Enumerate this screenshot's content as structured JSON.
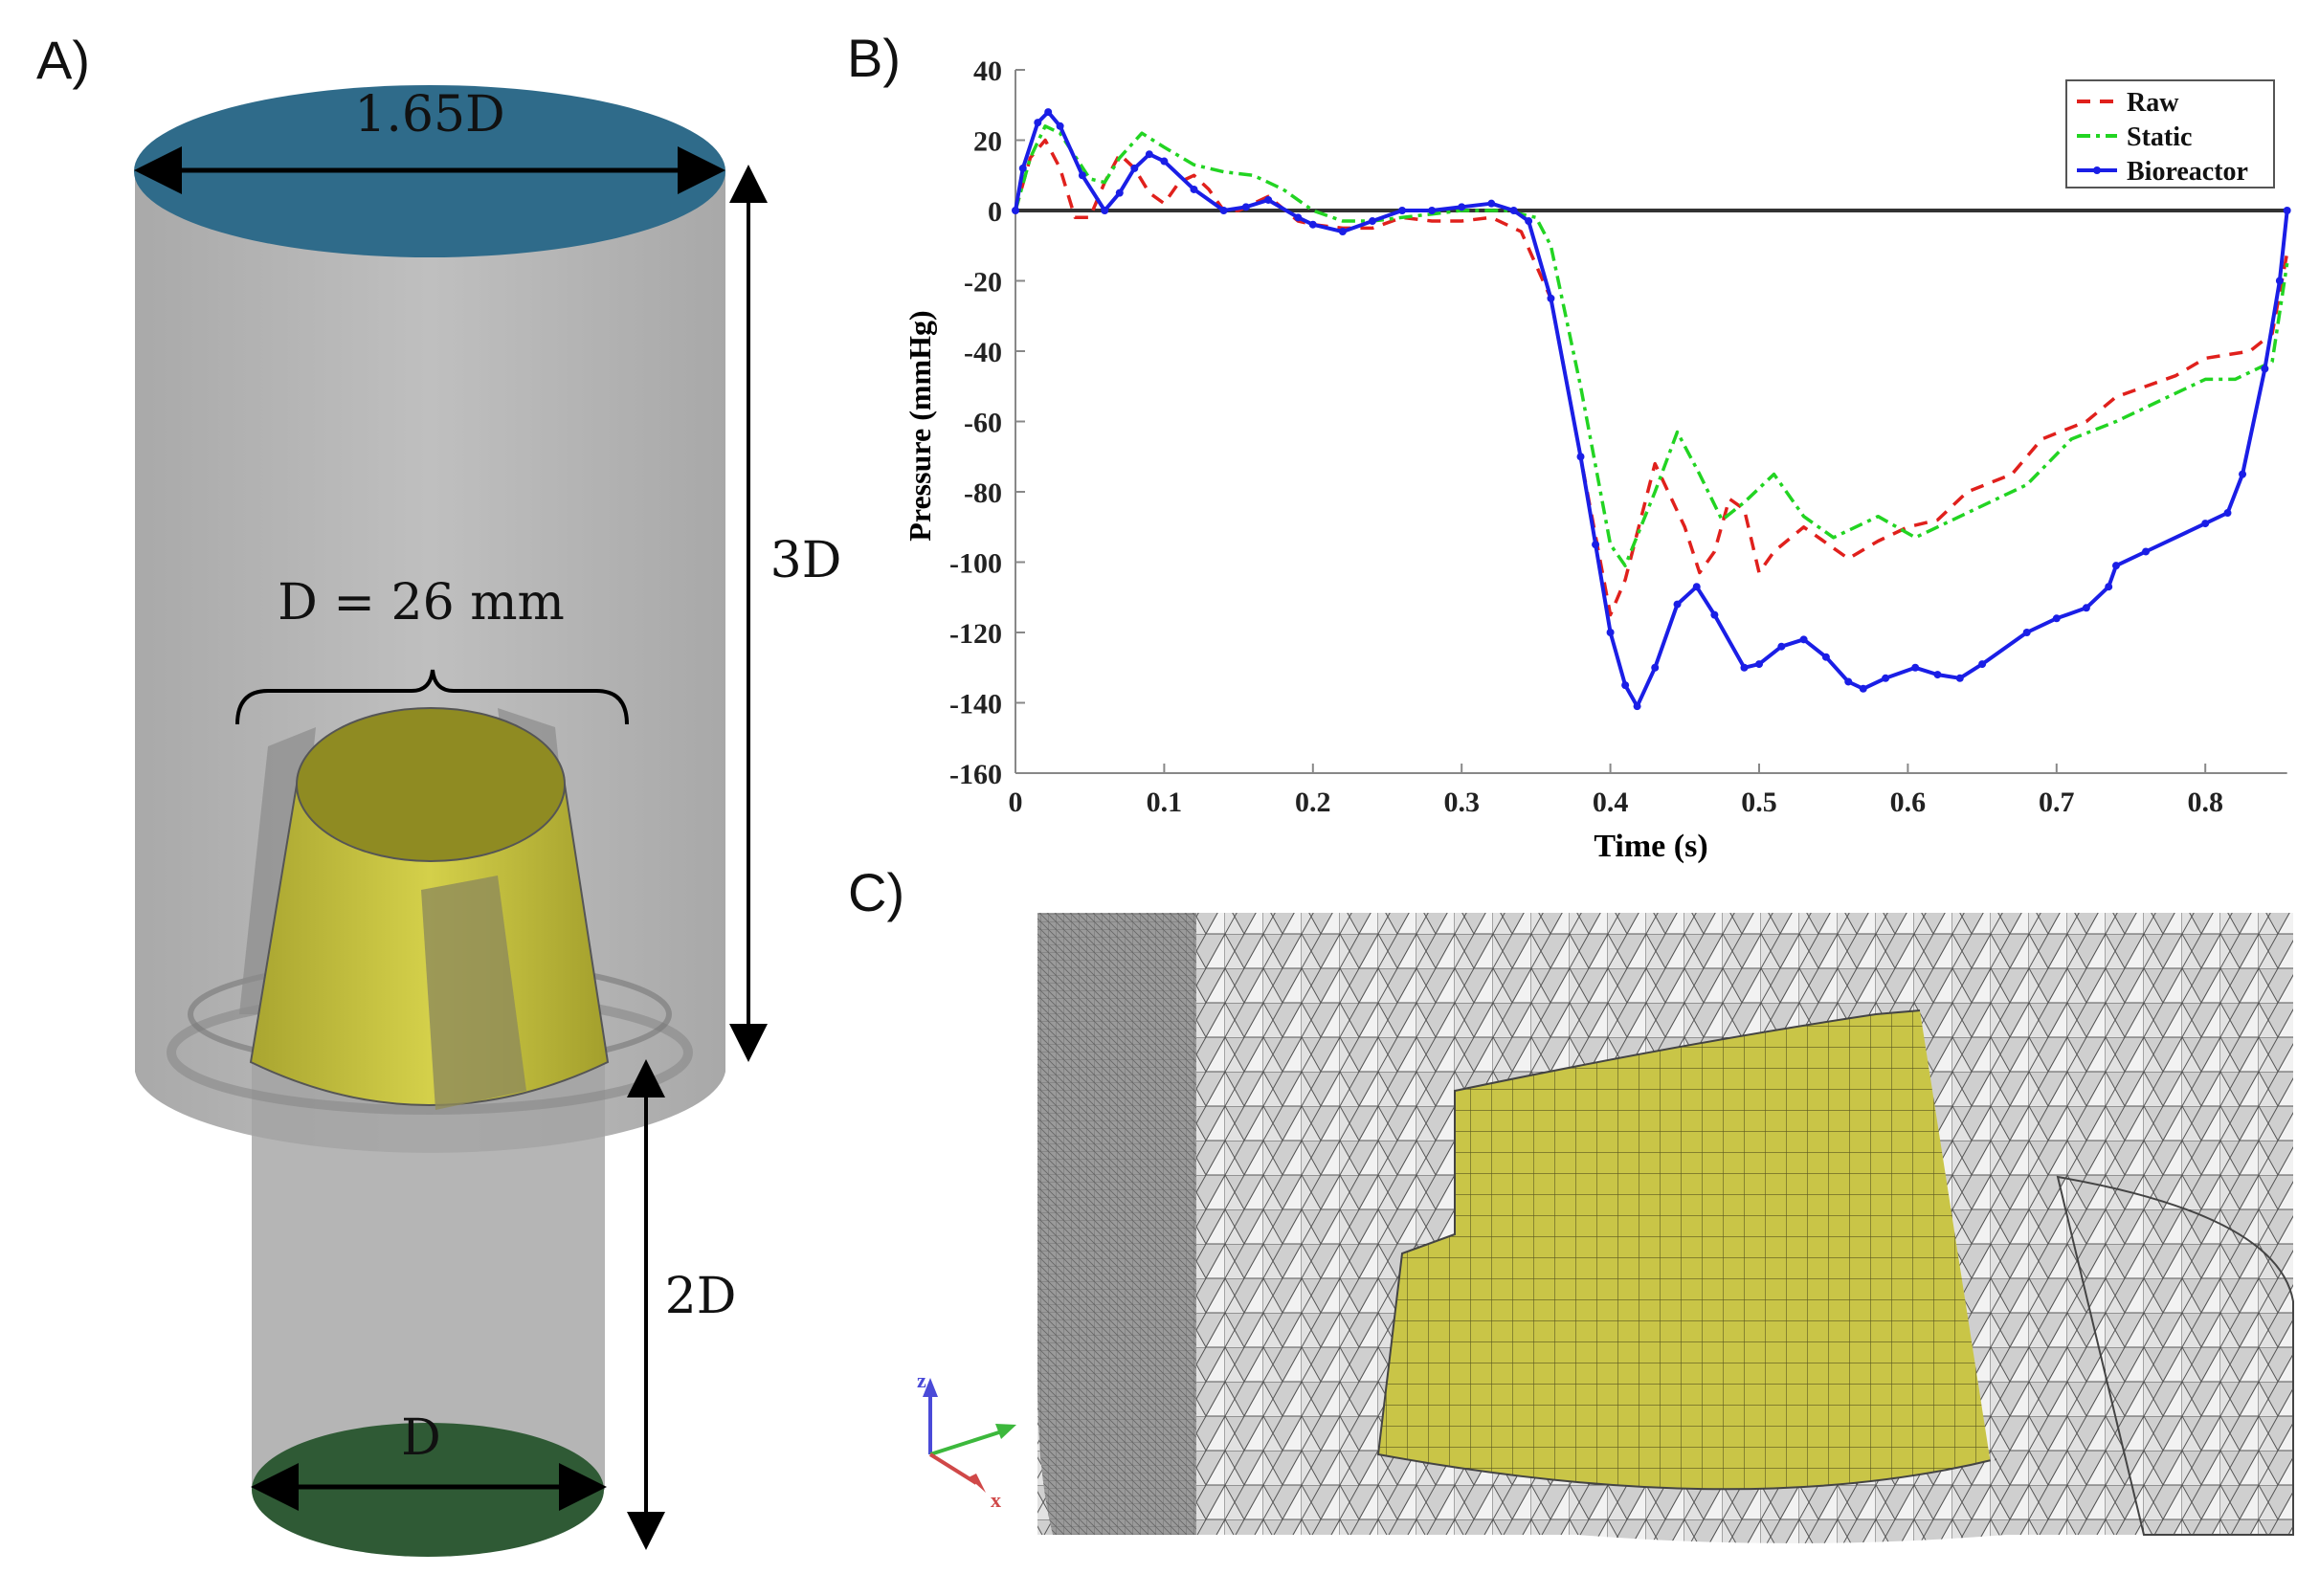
{
  "panels": {
    "a": "A)",
    "b": "B)",
    "c": "C)"
  },
  "panel_a": {
    "top_diameter_label": "1.65D",
    "height_upper_label": "3D",
    "diameter_label": "D = 26 mm",
    "height_lower_label": "2D",
    "bottom_diameter_label": "D",
    "colors": {
      "inlet": "#2f6b8a",
      "outlet": "#2f5a35",
      "stent": "#c8c43a",
      "body": "#a8a8a8"
    }
  },
  "panel_c": {
    "axes": {
      "z": "z",
      "x": "x"
    },
    "colors": {
      "mesh": "#d8d8d8",
      "valve": "#c9c547"
    }
  },
  "chart_data": {
    "type": "line",
    "title": "",
    "xlabel": "Time (s)",
    "ylabel": "Pressure (mmHg)",
    "xlim": [
      0,
      0.855
    ],
    "ylim": [
      -160,
      40
    ],
    "xticks": [
      0,
      0.1,
      0.2,
      0.3,
      0.4,
      0.5,
      0.6,
      0.7,
      0.8
    ],
    "yticks": [
      40,
      20,
      0,
      -20,
      -40,
      -60,
      -80,
      -100,
      -120,
      -140,
      -160
    ],
    "grid": false,
    "legend_position": "top-right",
    "zero_line": true,
    "series": [
      {
        "name": "Raw",
        "color": "#e0201c",
        "style": "dash",
        "points": [
          [
            0,
            0
          ],
          [
            0.01,
            15
          ],
          [
            0.02,
            20
          ],
          [
            0.03,
            12
          ],
          [
            0.04,
            -2
          ],
          [
            0.05,
            -2
          ],
          [
            0.06,
            8
          ],
          [
            0.07,
            16
          ],
          [
            0.08,
            12
          ],
          [
            0.09,
            5
          ],
          [
            0.1,
            2
          ],
          [
            0.11,
            8
          ],
          [
            0.12,
            10
          ],
          [
            0.13,
            6
          ],
          [
            0.14,
            0
          ],
          [
            0.15,
            0
          ],
          [
            0.17,
            4
          ],
          [
            0.19,
            -3
          ],
          [
            0.2,
            -4
          ],
          [
            0.22,
            -5
          ],
          [
            0.24,
            -5
          ],
          [
            0.26,
            -2
          ],
          [
            0.28,
            -3
          ],
          [
            0.3,
            -3
          ],
          [
            0.32,
            -2
          ],
          [
            0.34,
            -6
          ],
          [
            0.36,
            -25
          ],
          [
            0.38,
            -70
          ],
          [
            0.4,
            -115
          ],
          [
            0.41,
            -105
          ],
          [
            0.43,
            -72
          ],
          [
            0.45,
            -90
          ],
          [
            0.46,
            -103
          ],
          [
            0.47,
            -97
          ],
          [
            0.48,
            -82
          ],
          [
            0.49,
            -85
          ],
          [
            0.5,
            -103
          ],
          [
            0.51,
            -97
          ],
          [
            0.53,
            -90
          ],
          [
            0.56,
            -99
          ],
          [
            0.58,
            -94
          ],
          [
            0.6,
            -90
          ],
          [
            0.62,
            -88
          ],
          [
            0.64,
            -80
          ],
          [
            0.67,
            -75
          ],
          [
            0.69,
            -65
          ],
          [
            0.72,
            -60
          ],
          [
            0.74,
            -53
          ],
          [
            0.78,
            -47
          ],
          [
            0.8,
            -42
          ],
          [
            0.83,
            -40
          ],
          [
            0.845,
            -35
          ],
          [
            0.855,
            -12
          ]
        ]
      },
      {
        "name": "Static",
        "color": "#22d422",
        "style": "dashdot",
        "points": [
          [
            0,
            0
          ],
          [
            0.01,
            15
          ],
          [
            0.02,
            24
          ],
          [
            0.03,
            22
          ],
          [
            0.05,
            9
          ],
          [
            0.06,
            8
          ],
          [
            0.07,
            15
          ],
          [
            0.085,
            22
          ],
          [
            0.1,
            18
          ],
          [
            0.12,
            13
          ],
          [
            0.14,
            11
          ],
          [
            0.16,
            10
          ],
          [
            0.18,
            6
          ],
          [
            0.2,
            0
          ],
          [
            0.22,
            -3
          ],
          [
            0.24,
            -3
          ],
          [
            0.26,
            -2
          ],
          [
            0.28,
            -1
          ],
          [
            0.3,
            0
          ],
          [
            0.33,
            0
          ],
          [
            0.35,
            -2
          ],
          [
            0.36,
            -10
          ],
          [
            0.38,
            -50
          ],
          [
            0.4,
            -95
          ],
          [
            0.41,
            -101
          ],
          [
            0.43,
            -80
          ],
          [
            0.445,
            -63
          ],
          [
            0.46,
            -75
          ],
          [
            0.475,
            -88
          ],
          [
            0.49,
            -83
          ],
          [
            0.51,
            -75
          ],
          [
            0.53,
            -87
          ],
          [
            0.55,
            -93
          ],
          [
            0.58,
            -87
          ],
          [
            0.605,
            -93
          ],
          [
            0.63,
            -88
          ],
          [
            0.66,
            -82
          ],
          [
            0.68,
            -78
          ],
          [
            0.71,
            -65
          ],
          [
            0.74,
            -60
          ],
          [
            0.78,
            -52
          ],
          [
            0.8,
            -48
          ],
          [
            0.82,
            -48
          ],
          [
            0.845,
            -43
          ],
          [
            0.855,
            -15
          ]
        ]
      },
      {
        "name": "Bioreactor",
        "color": "#1a1ee6",
        "style": "solid-marker",
        "points": [
          [
            0,
            0
          ],
          [
            0.005,
            12
          ],
          [
            0.015,
            25
          ],
          [
            0.022,
            28
          ],
          [
            0.03,
            24
          ],
          [
            0.045,
            10
          ],
          [
            0.06,
            0
          ],
          [
            0.07,
            5
          ],
          [
            0.08,
            12
          ],
          [
            0.09,
            16
          ],
          [
            0.1,
            14
          ],
          [
            0.12,
            6
          ],
          [
            0.14,
            0
          ],
          [
            0.155,
            1
          ],
          [
            0.17,
            3
          ],
          [
            0.19,
            -2
          ],
          [
            0.2,
            -4
          ],
          [
            0.22,
            -6
          ],
          [
            0.24,
            -3
          ],
          [
            0.26,
            0
          ],
          [
            0.28,
            0
          ],
          [
            0.3,
            1
          ],
          [
            0.32,
            2
          ],
          [
            0.335,
            0
          ],
          [
            0.345,
            -3
          ],
          [
            0.36,
            -25
          ],
          [
            0.38,
            -70
          ],
          [
            0.39,
            -95
          ],
          [
            0.4,
            -120
          ],
          [
            0.41,
            -135
          ],
          [
            0.418,
            -141
          ],
          [
            0.43,
            -130
          ],
          [
            0.445,
            -112
          ],
          [
            0.458,
            -107
          ],
          [
            0.47,
            -115
          ],
          [
            0.49,
            -130
          ],
          [
            0.5,
            -129
          ],
          [
            0.515,
            -124
          ],
          [
            0.53,
            -122
          ],
          [
            0.545,
            -127
          ],
          [
            0.56,
            -134
          ],
          [
            0.57,
            -136
          ],
          [
            0.585,
            -133
          ],
          [
            0.605,
            -130
          ],
          [
            0.62,
            -132
          ],
          [
            0.635,
            -133
          ],
          [
            0.65,
            -129
          ],
          [
            0.68,
            -120
          ],
          [
            0.7,
            -116
          ],
          [
            0.72,
            -113
          ],
          [
            0.735,
            -107
          ],
          [
            0.74,
            -101
          ],
          [
            0.76,
            -97
          ],
          [
            0.8,
            -89
          ],
          [
            0.815,
            -86
          ],
          [
            0.825,
            -75
          ],
          [
            0.84,
            -45
          ],
          [
            0.85,
            -20
          ],
          [
            0.855,
            0
          ]
        ]
      }
    ]
  }
}
